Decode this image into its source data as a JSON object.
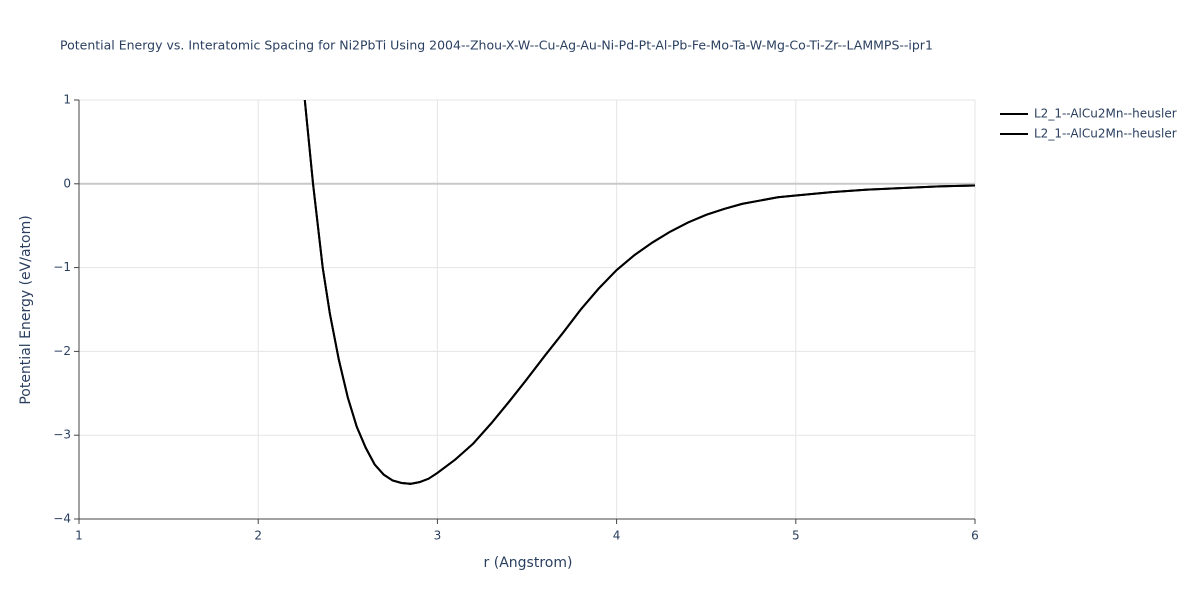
{
  "chart_data": {
    "type": "line",
    "title": "Potential Energy vs. Interatomic Spacing for Ni2PbTi Using 2004--Zhou-X-W--Cu-Ag-Au-Ni-Pd-Pt-Al-Pb-Fe-Mo-Ta-W-Mg-Co-Ti-Zr--LAMMPS--ipr1",
    "xlabel": "r (Angstrom)",
    "ylabel": "Potential Energy (eV/atom)",
    "x": [
      2.26,
      2.306,
      2.36,
      2.4,
      2.45,
      2.5,
      2.55,
      2.6,
      2.65,
      2.7,
      2.75,
      2.8,
      2.85,
      2.9,
      2.95,
      3.0,
      3.1,
      3.2,
      3.3,
      3.4,
      3.5,
      3.6,
      3.7,
      3.8,
      3.9,
      4.0,
      4.1,
      4.2,
      4.3,
      4.4,
      4.5,
      4.6,
      4.7,
      4.8,
      4.9,
      5.0,
      5.2,
      5.4,
      5.6,
      5.8,
      6.0
    ],
    "series": [
      {
        "name": "L2_1--AlCu2Mn--heusler",
        "color": "#000000",
        "values": [
          1.0,
          0.0,
          -1.0,
          -1.55,
          -2.1,
          -2.55,
          -2.9,
          -3.15,
          -3.35,
          -3.47,
          -3.54,
          -3.57,
          -3.58,
          -3.56,
          -3.52,
          -3.45,
          -3.29,
          -3.1,
          -2.86,
          -2.6,
          -2.33,
          -2.05,
          -1.78,
          -1.5,
          -1.25,
          -1.03,
          -0.85,
          -0.7,
          -0.57,
          -0.46,
          -0.37,
          -0.3,
          -0.24,
          -0.2,
          -0.16,
          -0.14,
          -0.1,
          -0.07,
          -0.05,
          -0.03,
          -0.02
        ]
      },
      {
        "name": "L2_1--AlCu2Mn--heusler",
        "color": "#000000",
        "values": [
          1.0,
          0.0,
          -1.0,
          -1.55,
          -2.1,
          -2.55,
          -2.9,
          -3.15,
          -3.35,
          -3.47,
          -3.54,
          -3.57,
          -3.58,
          -3.56,
          -3.52,
          -3.45,
          -3.29,
          -3.1,
          -2.86,
          -2.6,
          -2.33,
          -2.05,
          -1.78,
          -1.5,
          -1.25,
          -1.03,
          -0.85,
          -0.7,
          -0.57,
          -0.46,
          -0.37,
          -0.3,
          -0.24,
          -0.2,
          -0.16,
          -0.14,
          -0.1,
          -0.07,
          -0.05,
          -0.03,
          -0.02
        ]
      }
    ],
    "xlim": [
      1,
      6
    ],
    "xticks": [
      1,
      2,
      3,
      4,
      5,
      6
    ],
    "ylim": [
      -4,
      1
    ],
    "yticks": [
      1,
      0,
      {
        "value": -1,
        "label": "−1"
      },
      {
        "value": -2,
        "label": "−2"
      },
      {
        "value": -3,
        "label": "−3"
      },
      {
        "value": -4,
        "label": "−4"
      }
    ],
    "grid": true
  }
}
